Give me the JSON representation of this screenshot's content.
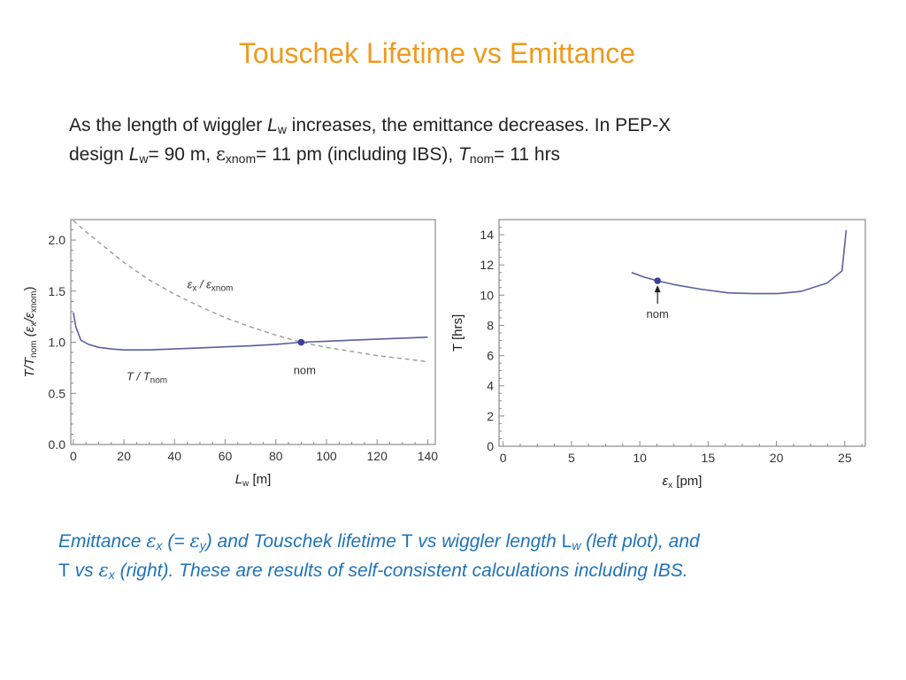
{
  "title": "Touschek Lifetime vs Emittance",
  "intro": {
    "line1_a": "As the length of wiggler ",
    "line1_L": "L",
    "line1_sub": "w",
    "line1_b": " increases, the emittance decreases. In PEP-X",
    "line2_a": "design ",
    "line2_L": "L",
    "line2_Lsub": "w",
    "line2_b": "= 90 m, ",
    "eps": "ε",
    "eps_sub": "xnom",
    "line2_c": "= 11 pm (including IBS), ",
    "T": "T",
    "T_sub": "nom",
    "line2_d": "= 11 hrs"
  },
  "caption": {
    "p1": "Emittance ",
    "eps": "ε",
    "eps_sub": "x",
    "p2": " (= ",
    "eps_y": "ε",
    "eps_y_sub": "y",
    "p3": ") and Touschek lifetime ",
    "T1": "T",
    "p4": " vs wiggler length ",
    "L": "L",
    "L_sub": "w",
    "p5": " (left plot), and",
    "T2": "T",
    "p6": " vs ",
    "eps2": "ε",
    "eps2_sub": "x",
    "p7": "  (right). These are results of self-consistent calculations including IBS."
  },
  "colors": {
    "title": "#ee9a1d",
    "caption": "#1f73b7",
    "curve": "#5a5f9e",
    "dashed": "#9a9a9a",
    "marker": "#3b3f9a",
    "frame": "#8a8a8a"
  },
  "chart_data": [
    {
      "type": "line",
      "xlabel": "L_w [m]",
      "ylabel": "T/T_nom (ε_x/ε_xnom)",
      "xlim": [
        -1,
        143
      ],
      "ylim": [
        0,
        2.2
      ],
      "xticks": [
        0,
        20,
        40,
        60,
        80,
        100,
        120,
        140
      ],
      "yticks": [
        0.0,
        0.5,
        1.0,
        1.5,
        2.0
      ],
      "ytick_labels": [
        "0.0",
        "0.5",
        "1.0",
        "1.5",
        "2.0"
      ],
      "grid": false,
      "series": [
        {
          "name": "ε_x / ε_xnom",
          "style": "dashed",
          "x": [
            0,
            5,
            10,
            20,
            30,
            40,
            50,
            60,
            70,
            80,
            90,
            100,
            110,
            120,
            130,
            140
          ],
          "y": [
            2.19,
            2.08,
            1.98,
            1.78,
            1.61,
            1.47,
            1.35,
            1.24,
            1.15,
            1.07,
            1.0,
            0.95,
            0.91,
            0.87,
            0.84,
            0.81
          ]
        },
        {
          "name": "T / T_nom",
          "style": "solid",
          "x": [
            0,
            1,
            3,
            6,
            10,
            15,
            20,
            30,
            40,
            50,
            60,
            70,
            80,
            90,
            100,
            110,
            120,
            130,
            140
          ],
          "y": [
            1.29,
            1.15,
            1.02,
            0.98,
            0.95,
            0.935,
            0.925,
            0.925,
            0.935,
            0.945,
            0.955,
            0.965,
            0.98,
            1.0,
            1.01,
            1.02,
            1.03,
            1.04,
            1.05
          ]
        }
      ],
      "marker": {
        "x": 90,
        "y": 1.0,
        "label": "nom"
      }
    },
    {
      "type": "line",
      "xlabel": "ε_x [pm]",
      "ylabel": "T [hrs]",
      "xlim": [
        -0.3,
        26.5
      ],
      "ylim": [
        0,
        15
      ],
      "xticks": [
        0,
        5,
        10,
        15,
        20,
        25
      ],
      "yticks": [
        0,
        2,
        4,
        6,
        8,
        10,
        12,
        14
      ],
      "grid": false,
      "series": [
        {
          "name": "T",
          "style": "solid",
          "x": [
            9.4,
            10.3,
            11.3,
            12.5,
            14.4,
            16.5,
            18.3,
            20.1,
            21.8,
            23.7,
            24.8,
            25.1
          ],
          "y": [
            11.5,
            11.2,
            10.95,
            10.7,
            10.4,
            10.15,
            10.1,
            10.1,
            10.25,
            10.8,
            11.6,
            14.3
          ]
        }
      ],
      "marker": {
        "x": 11.3,
        "y": 10.95,
        "label": "nom"
      }
    }
  ]
}
